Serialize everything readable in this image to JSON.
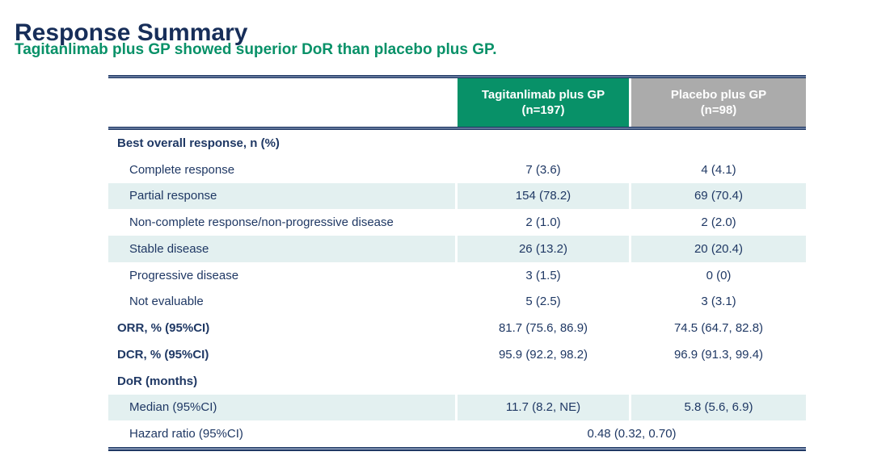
{
  "page": {
    "title": "Response Summary",
    "subtitle": "Tagitanlimab plus GP showed superior DoR than placebo plus GP."
  },
  "colors": {
    "title_navy": "#172E59",
    "subtitle_green": "#089168",
    "header_green": "#089168",
    "header_gray": "#ABABAB",
    "row_shade_teal": "#E3F0F0",
    "table_text_navy": "#1F3864",
    "rule_navy": "#1F3864"
  },
  "table": {
    "columns": [
      {
        "line1": "Tagitanlimab plus GP",
        "line2": "(n=197)"
      },
      {
        "line1": "Placebo plus GP",
        "line2": "(n=98)"
      }
    ],
    "rows": [
      {
        "label": "Best overall response, n (%)",
        "v1": "",
        "v2": ""
      },
      {
        "label": "Complete response",
        "v1": "7 (3.6)",
        "v2": "4 (4.1)"
      },
      {
        "label": "Partial response",
        "v1": "154 (78.2)",
        "v2": "69 (70.4)"
      },
      {
        "label": "Non-complete response/non-progressive disease",
        "v1": "2 (1.0)",
        "v2": "2 (2.0)"
      },
      {
        "label": "Stable disease",
        "v1": "26 (13.2)",
        "v2": "20 (20.4)"
      },
      {
        "label": "Progressive disease",
        "v1": "3 (1.5)",
        "v2": "0 (0)"
      },
      {
        "label": "Not evaluable",
        "v1": "5 (2.5)",
        "v2": "3 (3.1)"
      },
      {
        "label": "ORR, % (95%CI)",
        "v1": "81.7 (75.6, 86.9)",
        "v2": "74.5 (64.7, 82.8)"
      },
      {
        "label": "DCR, % (95%CI)",
        "v1": "95.9 (92.2, 98.2)",
        "v2": "96.9 (91.3, 99.4)"
      },
      {
        "label": "DoR (months)",
        "v1": "",
        "v2": ""
      },
      {
        "label": "Median (95%CI)",
        "v1": "11.7 (8.2, NE)",
        "v2": "5.8 (5.6, 6.9)"
      },
      {
        "label": "Hazard ratio (95%CI)",
        "span": "0.48 (0.32, 0.70)"
      }
    ]
  }
}
